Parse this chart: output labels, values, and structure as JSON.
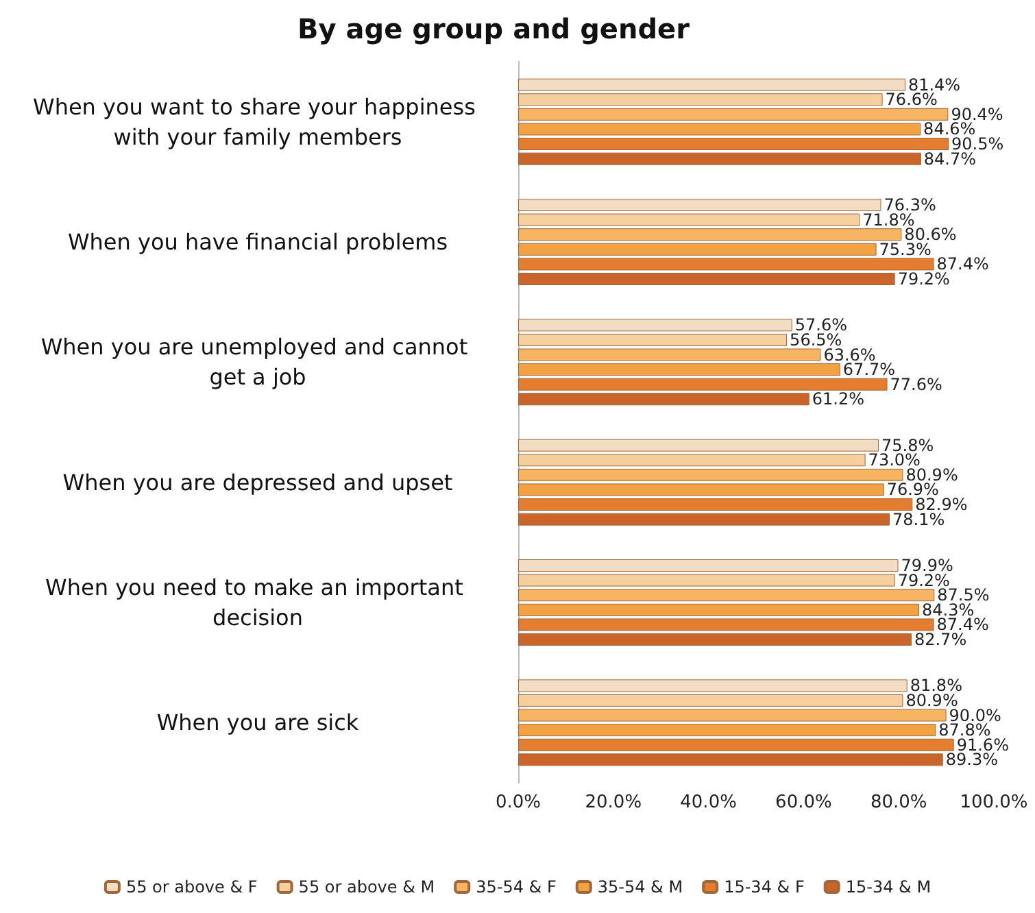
{
  "chart_data": {
    "type": "bar",
    "orientation": "horizontal",
    "title": "By age group and gender",
    "categories": [
      "When you want to share your happiness with your family members",
      "When you have financial problems",
      "When you are unemployed and cannot get a job",
      "When you are depressed and upset",
      "When you need to make an important decision",
      "When you are sick"
    ],
    "series": [
      {
        "name": "55 or above & F",
        "color": "#f2dcc4",
        "values": [
          81.4,
          76.3,
          57.6,
          75.8,
          79.9,
          81.8
        ],
        "value_labels": [
          "81.4%",
          "76.3%",
          "57.6%",
          "75.8%",
          "79.9%",
          "81.8%"
        ]
      },
      {
        "name": "55 or above & M",
        "color": "#f6cf9e",
        "values": [
          76.6,
          71.8,
          56.5,
          73.0,
          79.2,
          80.9
        ],
        "value_labels": [
          "76.6%",
          "71.8%",
          "56.5%",
          "73.0%",
          "79.2%",
          "80.9%"
        ]
      },
      {
        "name": "35-54 & F",
        "color": "#f7b463",
        "values": [
          90.4,
          80.6,
          63.6,
          80.9,
          87.5,
          90.0
        ],
        "value_labels": [
          "90.4%",
          "80.6%",
          "63.6%",
          "80.9%",
          "87.5%",
          "90.0%"
        ]
      },
      {
        "name": "35-54 & M",
        "color": "#f2a244",
        "values": [
          84.6,
          75.3,
          67.7,
          76.9,
          84.3,
          87.8
        ],
        "value_labels": [
          "84.6%",
          "75.3%",
          "67.7%",
          "76.9%",
          "84.3%",
          "87.8%"
        ]
      },
      {
        "name": "15-34 & F",
        "color": "#e47d30",
        "values": [
          90.5,
          87.4,
          77.6,
          82.9,
          87.4,
          91.6
        ],
        "value_labels": [
          "90.5%",
          "87.4%",
          "77.6%",
          "82.9%",
          "87.4%",
          "91.6%"
        ]
      },
      {
        "name": "15-34 & M",
        "color": "#c9652a",
        "values": [
          84.7,
          79.2,
          61.2,
          78.1,
          82.7,
          89.3
        ],
        "value_labels": [
          "84.7%",
          "79.2%",
          "61.2%",
          "78.1%",
          "82.7%",
          "89.3%"
        ]
      }
    ],
    "xlim": [
      0,
      100
    ],
    "xticks": [
      {
        "value": 0,
        "label": "0.0%"
      },
      {
        "value": 20,
        "label": "20.0%"
      },
      {
        "value": 40,
        "label": "40.0%"
      },
      {
        "value": 60,
        "label": "60.0%"
      },
      {
        "value": 80,
        "label": "80.0%"
      },
      {
        "value": 100,
        "label": "100.0%"
      }
    ],
    "legend": "bottom"
  }
}
